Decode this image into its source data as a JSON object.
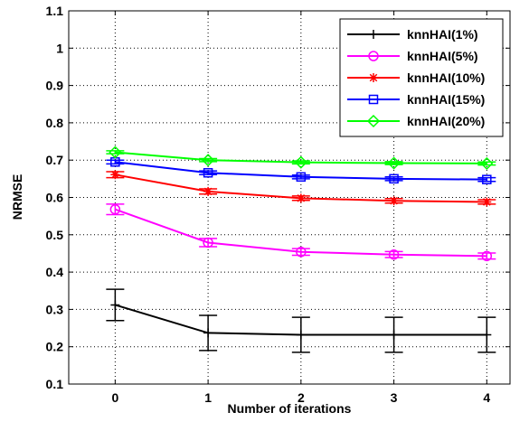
{
  "chart_data": {
    "type": "line",
    "title": "",
    "xlabel": "Number of iterations",
    "ylabel": "NRMSE",
    "x": [
      0,
      1,
      2,
      3,
      4
    ],
    "xticks": [
      "0",
      "1",
      "2",
      "3",
      "4"
    ],
    "xlim": [
      -0.5,
      4.25
    ],
    "ylim": [
      0.1,
      1.1
    ],
    "yticks": [
      "0.1",
      "0.2",
      "0.3",
      "0.4",
      "0.5",
      "0.6",
      "0.7",
      "0.8",
      "0.9",
      "1",
      "1.1"
    ],
    "grid": true,
    "legend_position": "top-right",
    "series": [
      {
        "name": "knnHAI(1%)",
        "color": "#000000",
        "marker": "plus",
        "values": [
          0.312,
          0.237,
          0.232,
          0.232,
          0.232
        ],
        "errors": [
          0.042,
          0.047,
          0.047,
          0.047,
          0.047
        ]
      },
      {
        "name": "knnHAI(5%)",
        "color": "#ff00ff",
        "marker": "circle",
        "values": [
          0.568,
          0.479,
          0.454,
          0.447,
          0.443
        ],
        "errors": [
          0.014,
          0.011,
          0.009,
          0.008,
          0.008
        ]
      },
      {
        "name": "knnHAI(10%)",
        "color": "#ff0000",
        "marker": "asterisk",
        "values": [
          0.661,
          0.616,
          0.598,
          0.591,
          0.588
        ],
        "errors": [
          0.008,
          0.007,
          0.006,
          0.006,
          0.006
        ]
      },
      {
        "name": "knnHAI(15%)",
        "color": "#0000ff",
        "marker": "square",
        "values": [
          0.695,
          0.666,
          0.655,
          0.65,
          0.648
        ],
        "errors": [
          0.005,
          0.005,
          0.005,
          0.005,
          0.005
        ]
      },
      {
        "name": "knnHAI(20%)",
        "color": "#00ff00",
        "marker": "diamond",
        "values": [
          0.721,
          0.7,
          0.694,
          0.692,
          0.691
        ],
        "errors": [
          0.004,
          0.004,
          0.004,
          0.004,
          0.004
        ]
      }
    ]
  }
}
